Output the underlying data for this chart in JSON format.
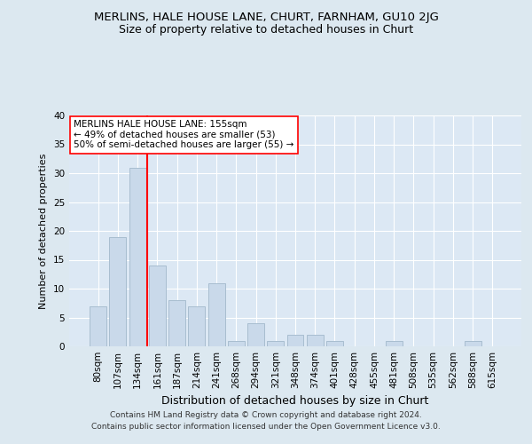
{
  "title": "MERLINS, HALE HOUSE LANE, CHURT, FARNHAM, GU10 2JG",
  "subtitle": "Size of property relative to detached houses in Churt",
  "xlabel": "Distribution of detached houses by size in Churt",
  "ylabel": "Number of detached properties",
  "categories": [
    "80sqm",
    "107sqm",
    "134sqm",
    "161sqm",
    "187sqm",
    "214sqm",
    "241sqm",
    "268sqm",
    "294sqm",
    "321sqm",
    "348sqm",
    "374sqm",
    "401sqm",
    "428sqm",
    "455sqm",
    "481sqm",
    "508sqm",
    "535sqm",
    "562sqm",
    "588sqm",
    "615sqm"
  ],
  "values": [
    7,
    19,
    31,
    14,
    8,
    7,
    11,
    1,
    4,
    1,
    2,
    2,
    1,
    0,
    0,
    1,
    0,
    0,
    0,
    1,
    0
  ],
  "bar_color": "#c9d9ea",
  "bar_edge_color": "#a8bdd0",
  "vline_x": 2.5,
  "vline_color": "red",
  "annotation_text": "MERLINS HALE HOUSE LANE: 155sqm\n← 49% of detached houses are smaller (53)\n50% of semi-detached houses are larger (55) →",
  "annotation_box_color": "white",
  "annotation_box_edge": "red",
  "ylim": [
    0,
    40
  ],
  "yticks": [
    0,
    5,
    10,
    15,
    20,
    25,
    30,
    35,
    40
  ],
  "footer1": "Contains HM Land Registry data © Crown copyright and database right 2024.",
  "footer2": "Contains public sector information licensed under the Open Government Licence v3.0.",
  "bg_color": "#dce8f0",
  "plot_bg_color": "#dce8f4"
}
